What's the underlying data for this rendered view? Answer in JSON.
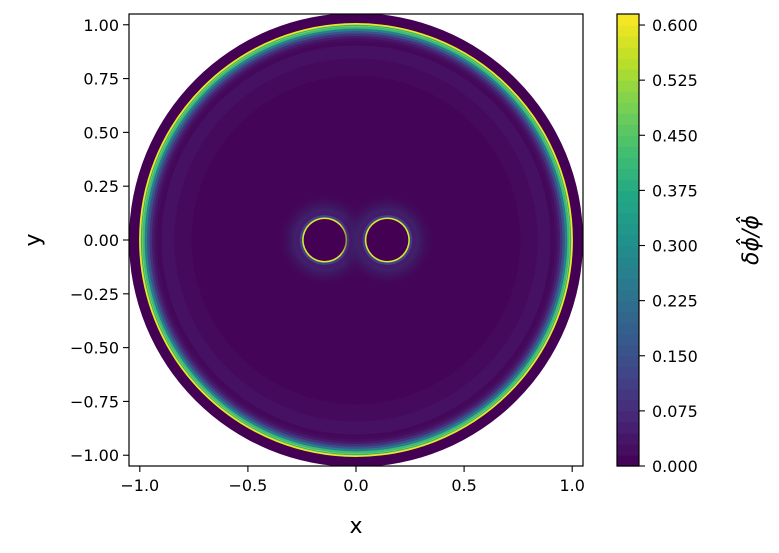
{
  "chart_data": {
    "type": "heatmap",
    "title": "",
    "xlabel": "x",
    "ylabel": "y",
    "xlim": [
      -1.05,
      1.05
    ],
    "ylim": [
      -1.05,
      1.05
    ],
    "xticks": [
      -1.0,
      -0.5,
      0.0,
      0.5,
      1.0
    ],
    "xtick_labels": [
      "−1.0",
      "−0.5",
      "0.0",
      "0.5",
      "1.0"
    ],
    "yticks": [
      -1.0,
      -0.75,
      -0.5,
      -0.25,
      0.0,
      0.25,
      0.5,
      0.75,
      1.0
    ],
    "ytick_labels": [
      "−1.00",
      "−0.75",
      "−0.50",
      "−0.25",
      "0.00",
      "0.25",
      "0.50",
      "0.75",
      "1.00"
    ],
    "grid": false,
    "colormap": "viridis",
    "colorbar": {
      "label": "δϕ̂/ϕ̂",
      "range": [
        0.0,
        0.615
      ],
      "ticks": [
        0.0,
        0.075,
        0.15,
        0.225,
        0.3,
        0.375,
        0.45,
        0.525,
        0.6
      ],
      "tick_labels": [
        "0.000",
        "0.075",
        "0.150",
        "0.225",
        "0.300",
        "0.375",
        "0.450",
        "0.525",
        "0.600"
      ],
      "levels": 41
    },
    "domain": {
      "outer_circle": {
        "cx": 0.0,
        "cy": 0.0,
        "r": 1.05,
        "value": 0.0
      },
      "inner_boundary": {
        "cx": 0.0,
        "cy": 0.0,
        "r": 1.0,
        "peak_value": 0.6
      },
      "holes": [
        {
          "cx": -0.145,
          "cy": 0.0,
          "r": 0.1,
          "peak_value": 0.6
        },
        {
          "cx": 0.145,
          "cy": 0.0,
          "r": 0.1,
          "peak_value": 0.6
        }
      ],
      "background_value": 0.01
    }
  }
}
